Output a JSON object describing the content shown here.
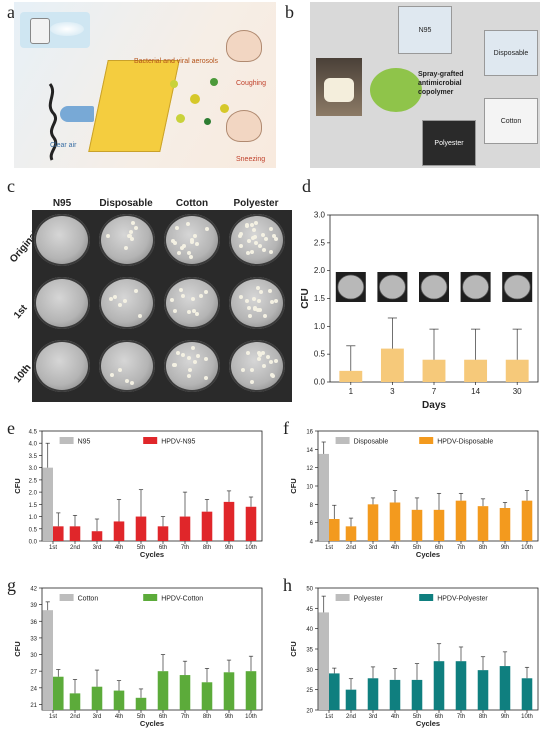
{
  "panels": {
    "a": {
      "letter": "a",
      "labels": {
        "aerosols": "Bacterial and viral aerosols",
        "coughing": "Coughing",
        "sneezing": "Sneezing",
        "clear_air": "Clear air"
      }
    },
    "b": {
      "letter": "b",
      "center": "Spray-grafted antimicrobial copolymer",
      "masks": [
        "N95",
        "Disposable",
        "Cotton",
        "Polyester"
      ]
    },
    "c": {
      "letter": "c",
      "columns": [
        "N95",
        "Disposable",
        "Cotton",
        "Polyester"
      ],
      "rows": [
        "Original",
        "1st",
        "10th"
      ]
    },
    "d": {
      "letter": "d"
    },
    "e": {
      "letter": "e"
    },
    "f": {
      "letter": "f"
    },
    "g": {
      "letter": "g"
    },
    "h": {
      "letter": "h"
    }
  },
  "chart_data": [
    {
      "id": "d",
      "type": "bar",
      "categories": [
        "1",
        "3",
        "7",
        "14",
        "30"
      ],
      "values": [
        0.2,
        0.6,
        0.4,
        0.4,
        0.4
      ],
      "errors": [
        0.45,
        0.55,
        0.55,
        0.55,
        0.55
      ],
      "xlabel": "Days",
      "ylabel": "CFU",
      "ylim": [
        0.0,
        3.0
      ],
      "yticks": [
        "0.0",
        "0.5",
        "1.0",
        "1.5",
        "2.0",
        "2.5",
        "3.0"
      ],
      "color": "#f6c97a"
    },
    {
      "id": "e",
      "type": "bar",
      "categories": [
        "1st",
        "2nd",
        "3rd",
        "4th",
        "5th",
        "6th",
        "7th",
        "8th",
        "9th",
        "10th"
      ],
      "control": {
        "name": "N95",
        "value": 3.0,
        "error": 1.0,
        "color": "#bdbdbd"
      },
      "series": [
        {
          "name": "HPDV-N95",
          "values": [
            0.6,
            0.6,
            0.4,
            0.8,
            1.0,
            0.6,
            1.0,
            1.2,
            1.6,
            1.4
          ],
          "errors": [
            0.55,
            0.45,
            0.5,
            0.9,
            1.1,
            0.4,
            1.0,
            0.5,
            0.45,
            0.4
          ],
          "color": "#e0262a"
        }
      ],
      "xlabel": "Cycles",
      "ylabel": "CFU",
      "ylim": [
        0.0,
        4.5
      ],
      "yticks": [
        "0.0",
        "0.5",
        "1.0",
        "1.5",
        "2.0",
        "2.5",
        "3.0",
        "3.5",
        "4.0",
        "4.5"
      ]
    },
    {
      "id": "f",
      "type": "bar",
      "categories": [
        "1st",
        "2nd",
        "3rd",
        "4th",
        "5th",
        "6th",
        "7th",
        "8th",
        "9th",
        "10th"
      ],
      "control": {
        "name": "Disposable",
        "value": 13.5,
        "error": 1.3,
        "color": "#bdbdbd"
      },
      "series": [
        {
          "name": "HPDV-Disposable",
          "values": [
            6.4,
            5.6,
            8.0,
            8.2,
            7.4,
            7.4,
            8.4,
            7.8,
            7.6,
            8.4
          ],
          "errors": [
            1.5,
            0.9,
            0.7,
            1.3,
            1.3,
            1.8,
            0.8,
            0.8,
            0.6,
            1.1
          ],
          "color": "#f39a1e"
        }
      ],
      "xlabel": "Cycles",
      "ylabel": "CFU",
      "ylim": [
        4,
        16
      ],
      "yticks": [
        "4",
        "6",
        "8",
        "10",
        "12",
        "14",
        "16"
      ]
    },
    {
      "id": "g",
      "type": "bar",
      "categories": [
        "1st",
        "2nd",
        "3rd",
        "4th",
        "5th",
        "6th",
        "7th",
        "8th",
        "9th",
        "10th"
      ],
      "control": {
        "name": "Cotton",
        "value": 38.0,
        "error": 1.5,
        "color": "#bdbdbd"
      },
      "series": [
        {
          "name": "HPDV-Cotton",
          "values": [
            26.0,
            23.0,
            24.2,
            23.5,
            22.2,
            27.0,
            26.3,
            25.0,
            26.8,
            27.0
          ],
          "errors": [
            1.3,
            2.5,
            3.0,
            1.8,
            1.6,
            3.0,
            2.5,
            2.5,
            2.2,
            2.7
          ],
          "color": "#5cab3a"
        }
      ],
      "xlabel": "Cycles",
      "ylabel": "CFU",
      "ylim": [
        20,
        42
      ],
      "yticks": [
        "21",
        "24",
        "27",
        "30",
        "33",
        "36",
        "39",
        "42"
      ]
    },
    {
      "id": "h",
      "type": "bar",
      "categories": [
        "1st",
        "2nd",
        "3rd",
        "4th",
        "5th",
        "6th",
        "7th",
        "8th",
        "9th",
        "10th"
      ],
      "control": {
        "name": "Polyester",
        "value": 44.0,
        "error": 4.0,
        "color": "#bdbdbd"
      },
      "series": [
        {
          "name": "HPDV-Polyester",
          "values": [
            29.0,
            25.0,
            27.8,
            27.4,
            27.4,
            32.0,
            32.0,
            29.8,
            30.8,
            27.8
          ],
          "errors": [
            1.3,
            2.7,
            2.8,
            2.8,
            4.0,
            4.3,
            3.5,
            3.3,
            3.5,
            2.7
          ],
          "color": "#0f7f7f"
        }
      ],
      "xlabel": "Cycles",
      "ylabel": "CFU",
      "ylim": [
        20,
        50
      ],
      "yticks": [
        "20",
        "25",
        "30",
        "35",
        "40",
        "45",
        "50"
      ]
    }
  ]
}
